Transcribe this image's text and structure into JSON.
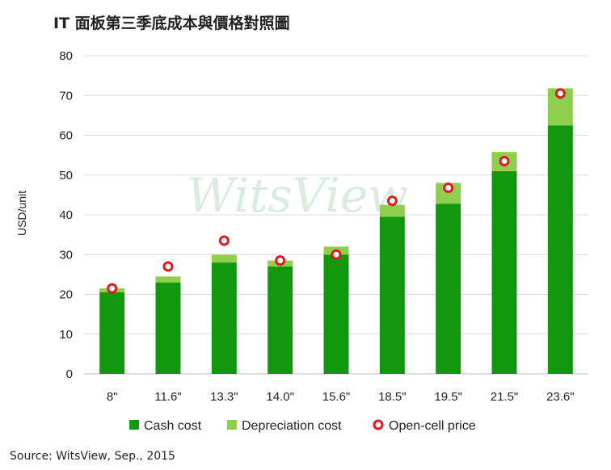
{
  "chart_data": {
    "type": "bar",
    "title": "IT 面板第三季底成本與價格對照圖",
    "ylabel": "USD/unit",
    "xlabel": "",
    "ylim": [
      0,
      80
    ],
    "yticks": [
      0,
      10,
      20,
      30,
      40,
      50,
      60,
      70,
      80
    ],
    "grid": true,
    "stacked": true,
    "categories": [
      "8\"",
      "11.6\"",
      "13.3\"",
      "14.0\"",
      "15.6\"",
      "18.5\"",
      "19.5\"",
      "21.5\"",
      "23.6\""
    ],
    "series": [
      {
        "name": "Cash cost",
        "kind": "bar",
        "color": "#11980f",
        "values": [
          20.5,
          23.0,
          28.0,
          27.0,
          30.0,
          39.5,
          42.8,
          51.0,
          62.5
        ]
      },
      {
        "name": "Depreciation cost",
        "kind": "bar",
        "color": "#8fce4f",
        "values": [
          1.0,
          1.5,
          2.0,
          1.5,
          2.0,
          3.0,
          5.2,
          4.8,
          9.3
        ]
      },
      {
        "name": "Open-cell price",
        "kind": "marker",
        "color": "#e0191f",
        "values": [
          21.5,
          27.0,
          33.5,
          28.5,
          30.0,
          43.5,
          46.8,
          53.5,
          70.5
        ]
      }
    ],
    "legend": "bottom",
    "watermark": "WitsView"
  },
  "source": "Source: WitsView, Sep., 2015"
}
